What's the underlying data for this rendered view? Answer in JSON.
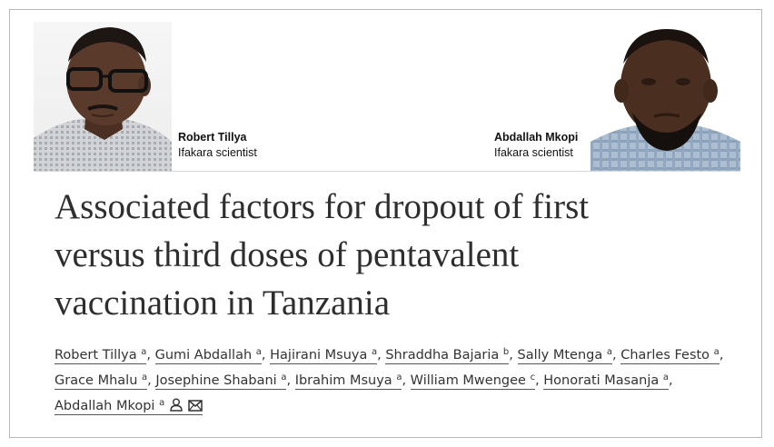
{
  "scientists": [
    {
      "name": "Robert Tillya",
      "role": "Ifakara scientist"
    },
    {
      "name": "Abdallah Mkopi",
      "role": "Ifakara scientist"
    }
  ],
  "article": {
    "title_lines": [
      "Associated factors for dropout of first",
      "versus third doses of pentavalent",
      "vaccination in Tanzania"
    ],
    "authors": [
      {
        "name": "Robert Tillya",
        "aff": "a"
      },
      {
        "name": "Gumi Abdallah",
        "aff": "a"
      },
      {
        "name": "Hajirani Msuya",
        "aff": "a"
      },
      {
        "name": "Shraddha Bajaria",
        "aff": "b"
      },
      {
        "name": "Sally Mtenga",
        "aff": "a"
      },
      {
        "name": "Charles Festo",
        "aff": "a"
      },
      {
        "name": "Grace Mhalu",
        "aff": "a"
      },
      {
        "name": "Josephine Shabani",
        "aff": "a"
      },
      {
        "name": "Ibrahim Msuya",
        "aff": "a"
      },
      {
        "name": "William Mwengee",
        "aff": "c"
      },
      {
        "name": "Honorati Masanja",
        "aff": "a"
      },
      {
        "name": "Abdallah Mkopi",
        "aff": "a"
      }
    ],
    "separator": ",",
    "icons": [
      "person-icon",
      "envelope-icon"
    ]
  },
  "colors": {
    "title": "#2e2e2e",
    "text": "#333333",
    "frame": "#b8b8b8"
  }
}
